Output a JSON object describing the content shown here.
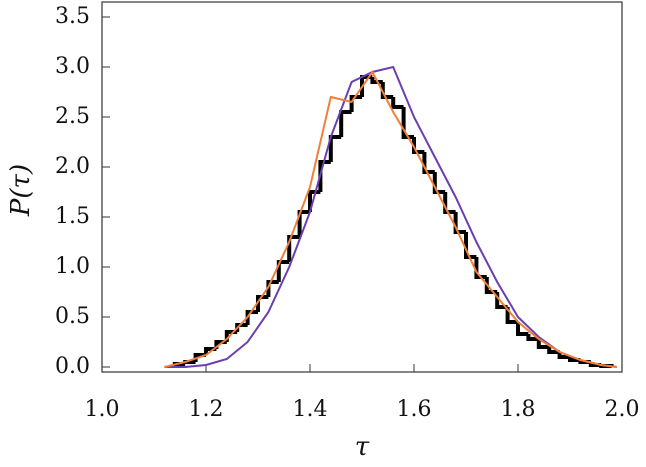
{
  "chart_data": {
    "type": "histogram",
    "xlabel": "τ",
    "ylabel": "P(τ)",
    "bins": [
      1.14,
      1.16,
      1.18,
      1.2,
      1.22,
      1.24,
      1.26,
      1.28,
      1.3,
      1.32,
      1.34,
      1.36,
      1.38,
      1.4,
      1.42,
      1.44,
      1.46,
      1.48,
      1.5,
      1.52,
      1.54,
      1.56,
      1.58,
      1.6,
      1.62,
      1.64,
      1.66,
      1.68,
      1.7,
      1.72,
      1.74,
      1.76,
      1.78,
      1.8,
      1.82,
      1.84,
      1.86,
      1.88,
      1.9,
      1.92,
      1.94,
      1.96,
      1.98
    ],
    "values": [
      0.03,
      0.05,
      0.12,
      0.18,
      0.25,
      0.35,
      0.42,
      0.55,
      0.7,
      0.85,
      1.05,
      1.3,
      1.55,
      1.75,
      2.05,
      2.3,
      2.55,
      2.7,
      2.9,
      2.85,
      2.7,
      2.6,
      2.3,
      2.15,
      1.95,
      1.75,
      1.55,
      1.35,
      1.1,
      0.9,
      0.75,
      0.6,
      0.45,
      0.33,
      0.28,
      0.2,
      0.15,
      0.1,
      0.07,
      0.05,
      0.02,
      0.01
    ],
    "color": "#000000",
    "series": [
      {
        "color": "#6a3fb0",
        "x": [
          1.12,
          1.16,
          1.2,
          1.24,
          1.28,
          1.32,
          1.36,
          1.4,
          1.44,
          1.48,
          1.52,
          1.56,
          1.6,
          1.64,
          1.68,
          1.72,
          1.76,
          1.8,
          1.84,
          1.88,
          1.92,
          1.96,
          1.99
        ],
        "values": [
          0,
          0,
          0.02,
          0.08,
          0.25,
          0.55,
          1.0,
          1.55,
          2.3,
          2.85,
          2.95,
          3.0,
          2.5,
          2.1,
          1.7,
          1.25,
          0.85,
          0.5,
          0.3,
          0.15,
          0.07,
          0.02,
          0.0
        ]
      },
      {
        "color": "#f07f3a",
        "x": [
          1.12,
          1.16,
          1.2,
          1.24,
          1.28,
          1.32,
          1.36,
          1.4,
          1.44,
          1.48,
          1.52,
          1.56,
          1.6,
          1.64,
          1.68,
          1.72,
          1.76,
          1.8,
          1.84,
          1.88,
          1.92,
          1.96,
          1.99
        ],
        "values": [
          0,
          0.05,
          0.12,
          0.28,
          0.5,
          0.8,
          1.25,
          1.8,
          2.7,
          2.65,
          2.95,
          2.55,
          2.2,
          1.8,
          1.4,
          0.95,
          0.7,
          0.45,
          0.28,
          0.15,
          0.07,
          0.02,
          0.0
        ]
      }
    ],
    "xlim": [
      1.0,
      2.0
    ],
    "ylim": [
      -0.05,
      3.65
    ],
    "xticks": [
      {
        "value": 1.0,
        "label": "1.0"
      },
      {
        "value": 1.2,
        "label": "1.2"
      },
      {
        "value": 1.4,
        "label": "1.4"
      },
      {
        "value": 1.6,
        "label": "1.6"
      },
      {
        "value": 1.8,
        "label": "1.8"
      },
      {
        "value": 2.0,
        "label": "2.0"
      }
    ],
    "yticks": [
      {
        "value": 0,
        "label": "0.0"
      },
      {
        "value": 0.5,
        "label": "0.5"
      },
      {
        "value": 1.0,
        "label": "1.0"
      },
      {
        "value": 1.5,
        "label": "1.5"
      },
      {
        "value": 2.0,
        "label": "2.0"
      },
      {
        "value": 2.5,
        "label": "2.5"
      },
      {
        "value": 3.0,
        "label": "3.0"
      },
      {
        "value": 3.5,
        "label": "3.5"
      }
    ]
  }
}
